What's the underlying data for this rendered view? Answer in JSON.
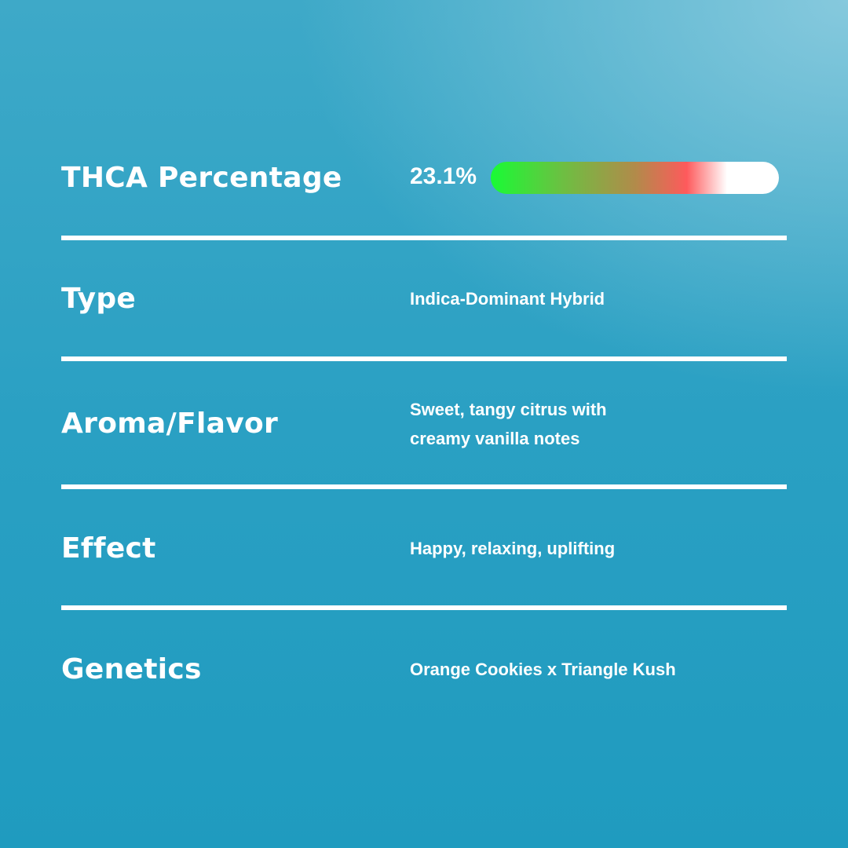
{
  "thca": {
    "label": "THCA Percentage",
    "value": "23.1%",
    "percent": 23.1,
    "bar_colors": [
      "#19fb35",
      "#b18b4a",
      "#fe5a5c",
      "#ffffff"
    ]
  },
  "rows": [
    {
      "label": "Type",
      "value": "Indica-Dominant Hybrid"
    },
    {
      "label": "Aroma/Flavor",
      "value": "Sweet, tangy citrus with creamy vanilla notes"
    },
    {
      "label": "Effect",
      "value": "Happy, relaxing, uplifting"
    },
    {
      "label": "Genetics",
      "value": "Orange Cookies x Triangle Kush"
    }
  ]
}
